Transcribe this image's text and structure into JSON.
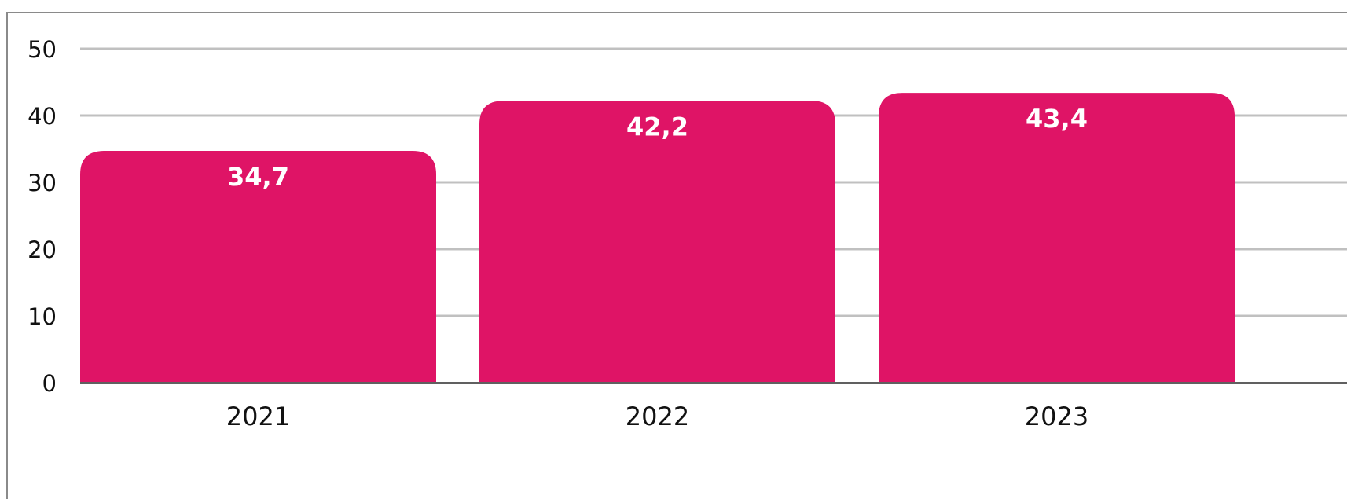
{
  "chart_data": {
    "type": "bar",
    "categories": [
      "2021",
      "2022",
      "2023"
    ],
    "values": [
      34.7,
      42.2,
      43.4
    ],
    "value_labels": [
      "34,7",
      "42,2",
      "43,4"
    ],
    "yticks": [
      0,
      10,
      20,
      30,
      40,
      50
    ],
    "ylim": [
      0,
      50
    ],
    "title": "",
    "xlabel": "",
    "ylabel": "",
    "grid": true,
    "bar_color": "#df1466",
    "grid_color": "#c0c0c0",
    "axis_color": "#606060"
  }
}
